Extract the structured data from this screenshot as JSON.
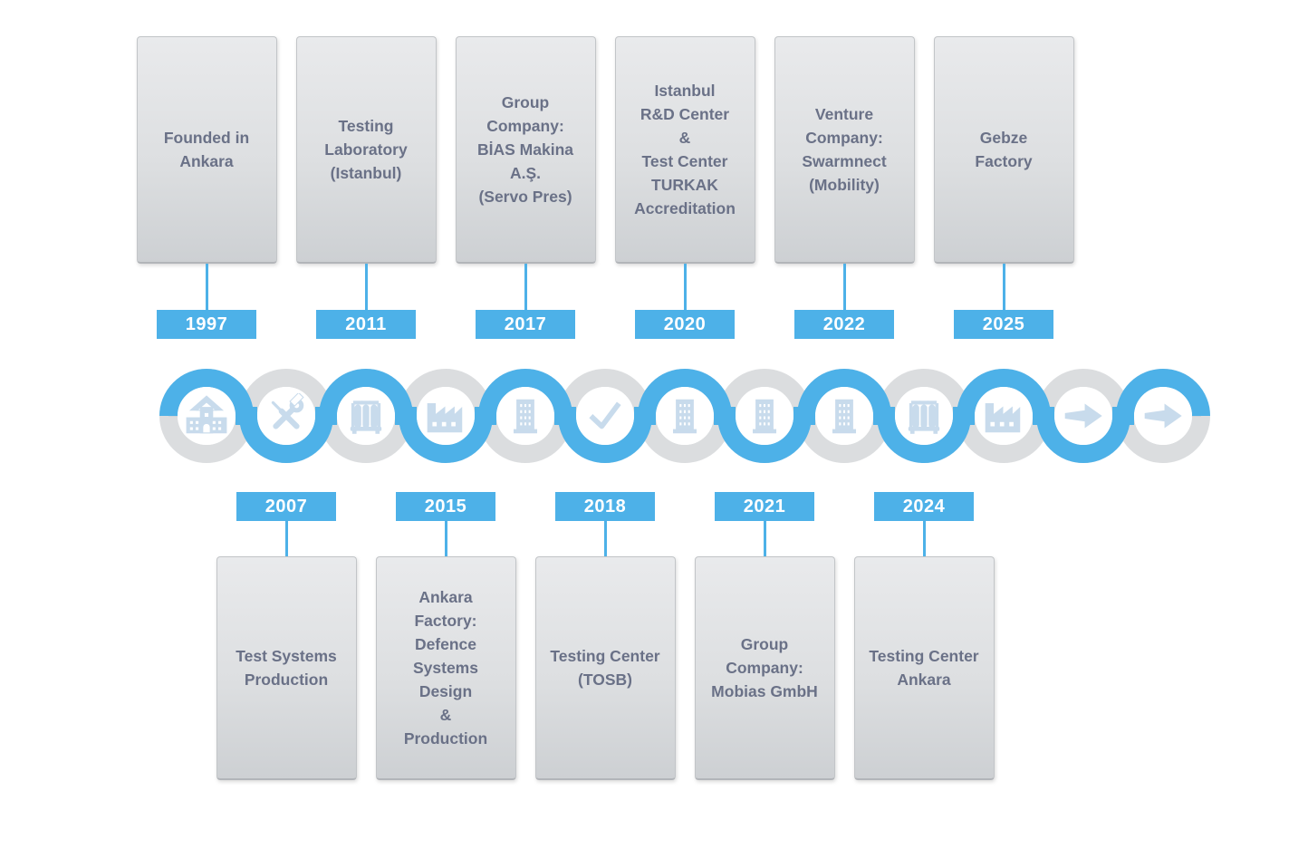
{
  "page": {
    "background": "#FFFFFF"
  },
  "colors": {
    "accent_blue": "#4DB1E8",
    "ring_gray": "#DBDDDF",
    "icon_blue": "#C8DBEC",
    "card_text": "#6A7187",
    "year_text": "#FFFFFF",
    "card_bg_top": "#E9EAEC",
    "card_bg_bottom": "#CDD0D3",
    "card_border": "#C2C5C8",
    "hairline": "#CDD4D9"
  },
  "timeline": {
    "milestones": [
      {
        "year": "1997",
        "label": "Founded in\nAnkara",
        "side": "top",
        "icon": "school"
      },
      {
        "year": "2007",
        "label": "Test Systems\nProduction",
        "side": "bottom",
        "icon": "tools"
      },
      {
        "year": "2011",
        "label": "Testing\nLaboratory\n(Istanbul)",
        "side": "top",
        "icon": "test-tubes"
      },
      {
        "year": "2015",
        "label": "Ankara\nFactory:\nDefence\nSystems\nDesign\n&\nProduction",
        "side": "bottom",
        "icon": "factory"
      },
      {
        "year": "2017",
        "label": "Group\nCompany:\nBİAS Makina\nA.Ş.\n(Servo Pres)",
        "side": "top",
        "icon": "building"
      },
      {
        "year": "2018",
        "label": "Testing Center\n(TOSB)",
        "side": "bottom",
        "icon": "check"
      },
      {
        "year": "2020",
        "label": "Istanbul\nR&D Center\n&\nTest Center\nTURKAK\nAccreditation",
        "side": "top",
        "icon": "building"
      },
      {
        "year": "2021",
        "label": "Group\nCompany:\nMobias GmbH",
        "side": "bottom",
        "icon": "building"
      },
      {
        "year": "2022",
        "label": "Venture\nCompany:\nSwarmnect\n(Mobility)",
        "side": "top",
        "icon": "building"
      },
      {
        "year": "2024",
        "label": "Testing Center\nAnkara",
        "side": "bottom",
        "icon": "test-tubes"
      },
      {
        "year": "2025",
        "label": "Gebze\nFactory",
        "side": "top",
        "icon": "factory"
      }
    ],
    "future": [
      {
        "icon": "arrow"
      },
      {
        "icon": "arrow"
      }
    ]
  }
}
